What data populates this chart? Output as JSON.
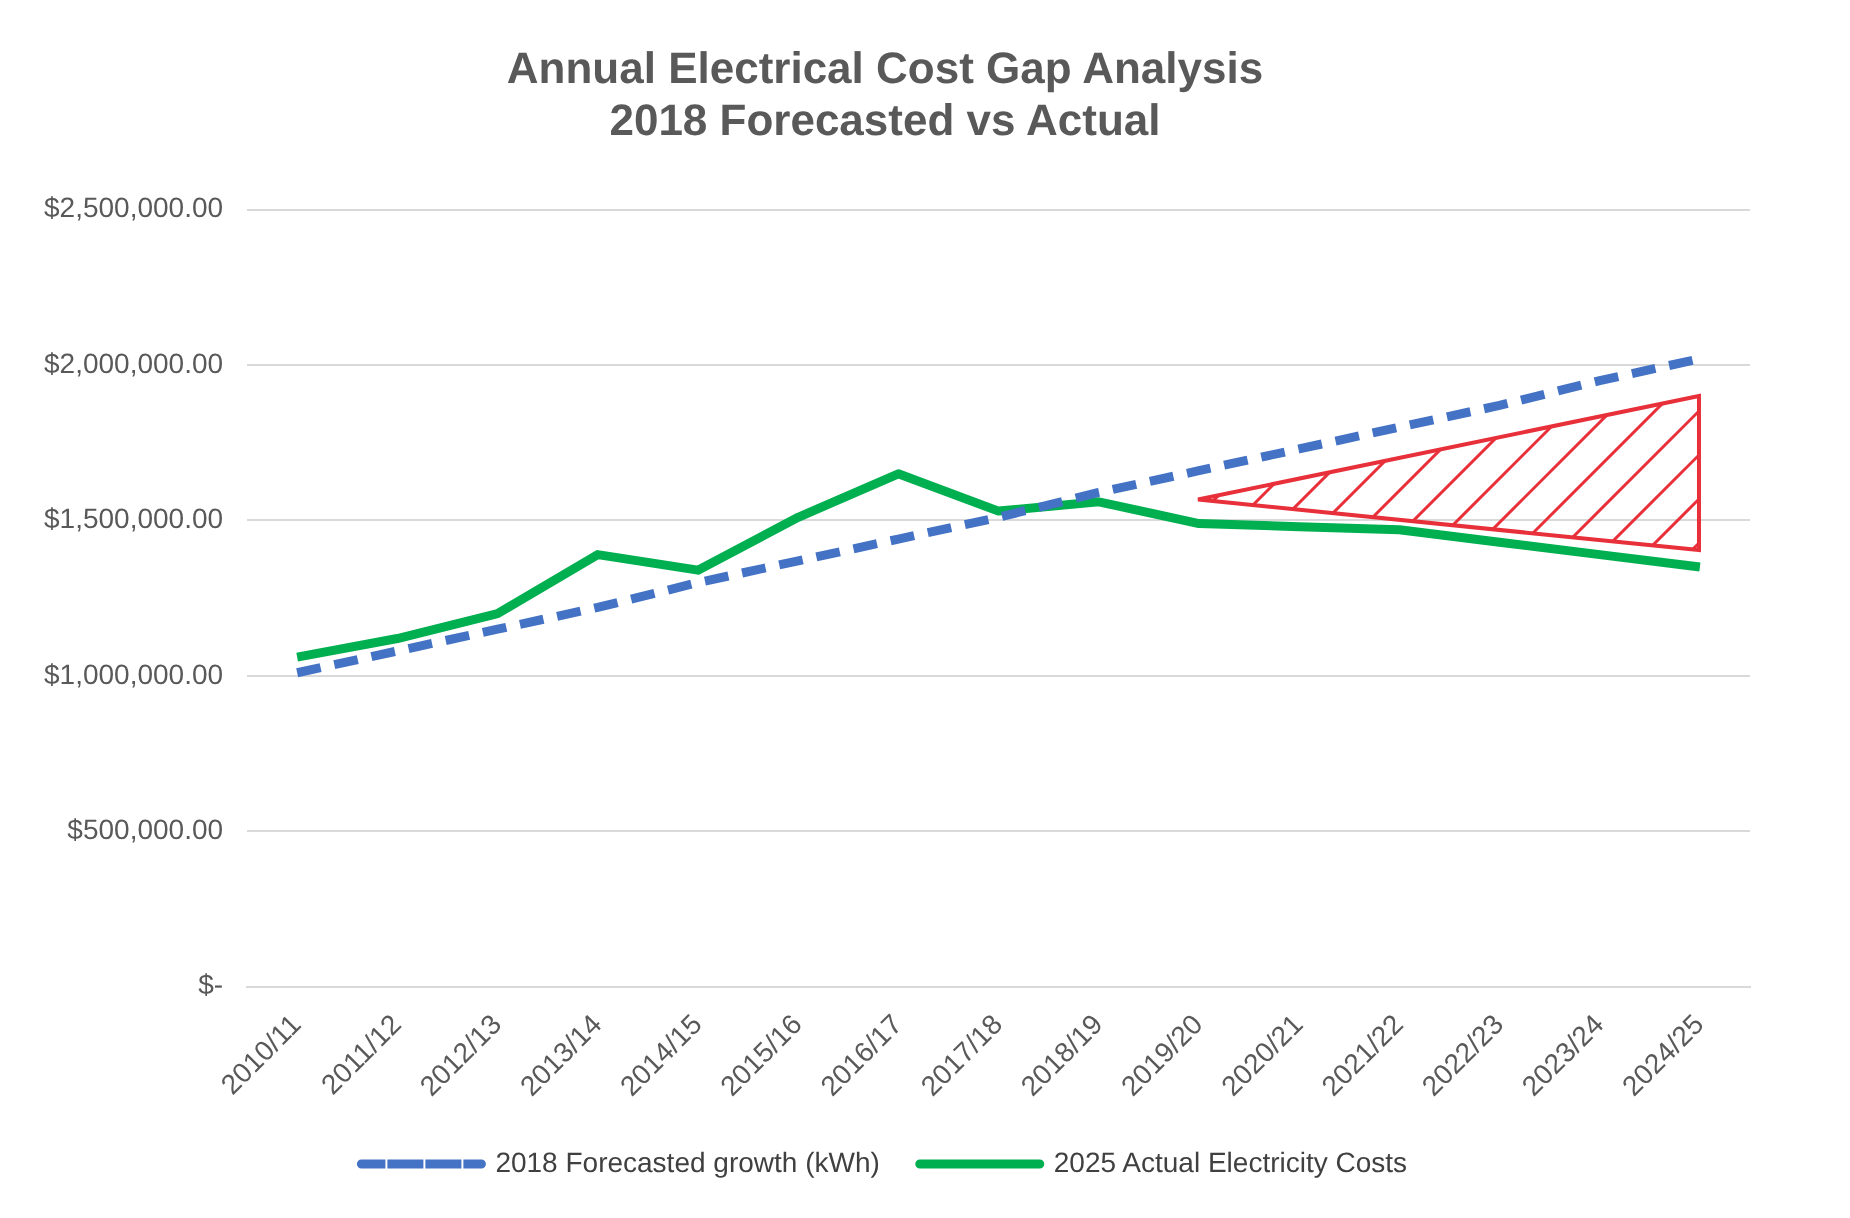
{
  "chart_data": {
    "type": "line",
    "title": [
      "Annual Electrical Cost Gap Analysis",
      "2018 Forecasted vs Actual"
    ],
    "categories": [
      "2010/11",
      "2011/12",
      "2012/13",
      "2013/14",
      "2014/15",
      "2015/16",
      "2016/17",
      "2017/18",
      "2018/19",
      "2019/20",
      "2020/21",
      "2021/22",
      "2022/23",
      "2023/24",
      "2024/25"
    ],
    "series": [
      {
        "name": "2018 Forecasted growth (kWh)",
        "color": "#4472c4",
        "line_style": "dashed",
        "values": [
          1010000,
          1080000,
          1150000,
          1220000,
          1300000,
          1370000,
          1440000,
          1510000,
          1590000,
          1660000,
          1730000,
          1800000,
          1870000,
          1950000,
          2020000
        ]
      },
      {
        "name": "2025 Actual Electricity Costs",
        "color": "#00b050",
        "line_style": "solid",
        "values": [
          1060000,
          1120000,
          1200000,
          1390000,
          1340000,
          1510000,
          1650000,
          1530000,
          1560000,
          1490000,
          1480000,
          1470000,
          1430000,
          1390000,
          1350000
        ]
      }
    ],
    "ylim": [
      0,
      2500000
    ],
    "yticks": [
      {
        "value": 0,
        "label": "$-"
      },
      {
        "value": 500000,
        "label": "$500,000.00"
      },
      {
        "value": 1000000,
        "label": "$1,000,000.00"
      },
      {
        "value": 1500000,
        "label": "$1,500,000.00"
      },
      {
        "value": 2000000,
        "label": "$2,000,000.00"
      },
      {
        "value": 2500000,
        "label": "$2,500,000.00"
      }
    ],
    "grid": "y",
    "legend": "bottom",
    "marker": "none"
  }
}
